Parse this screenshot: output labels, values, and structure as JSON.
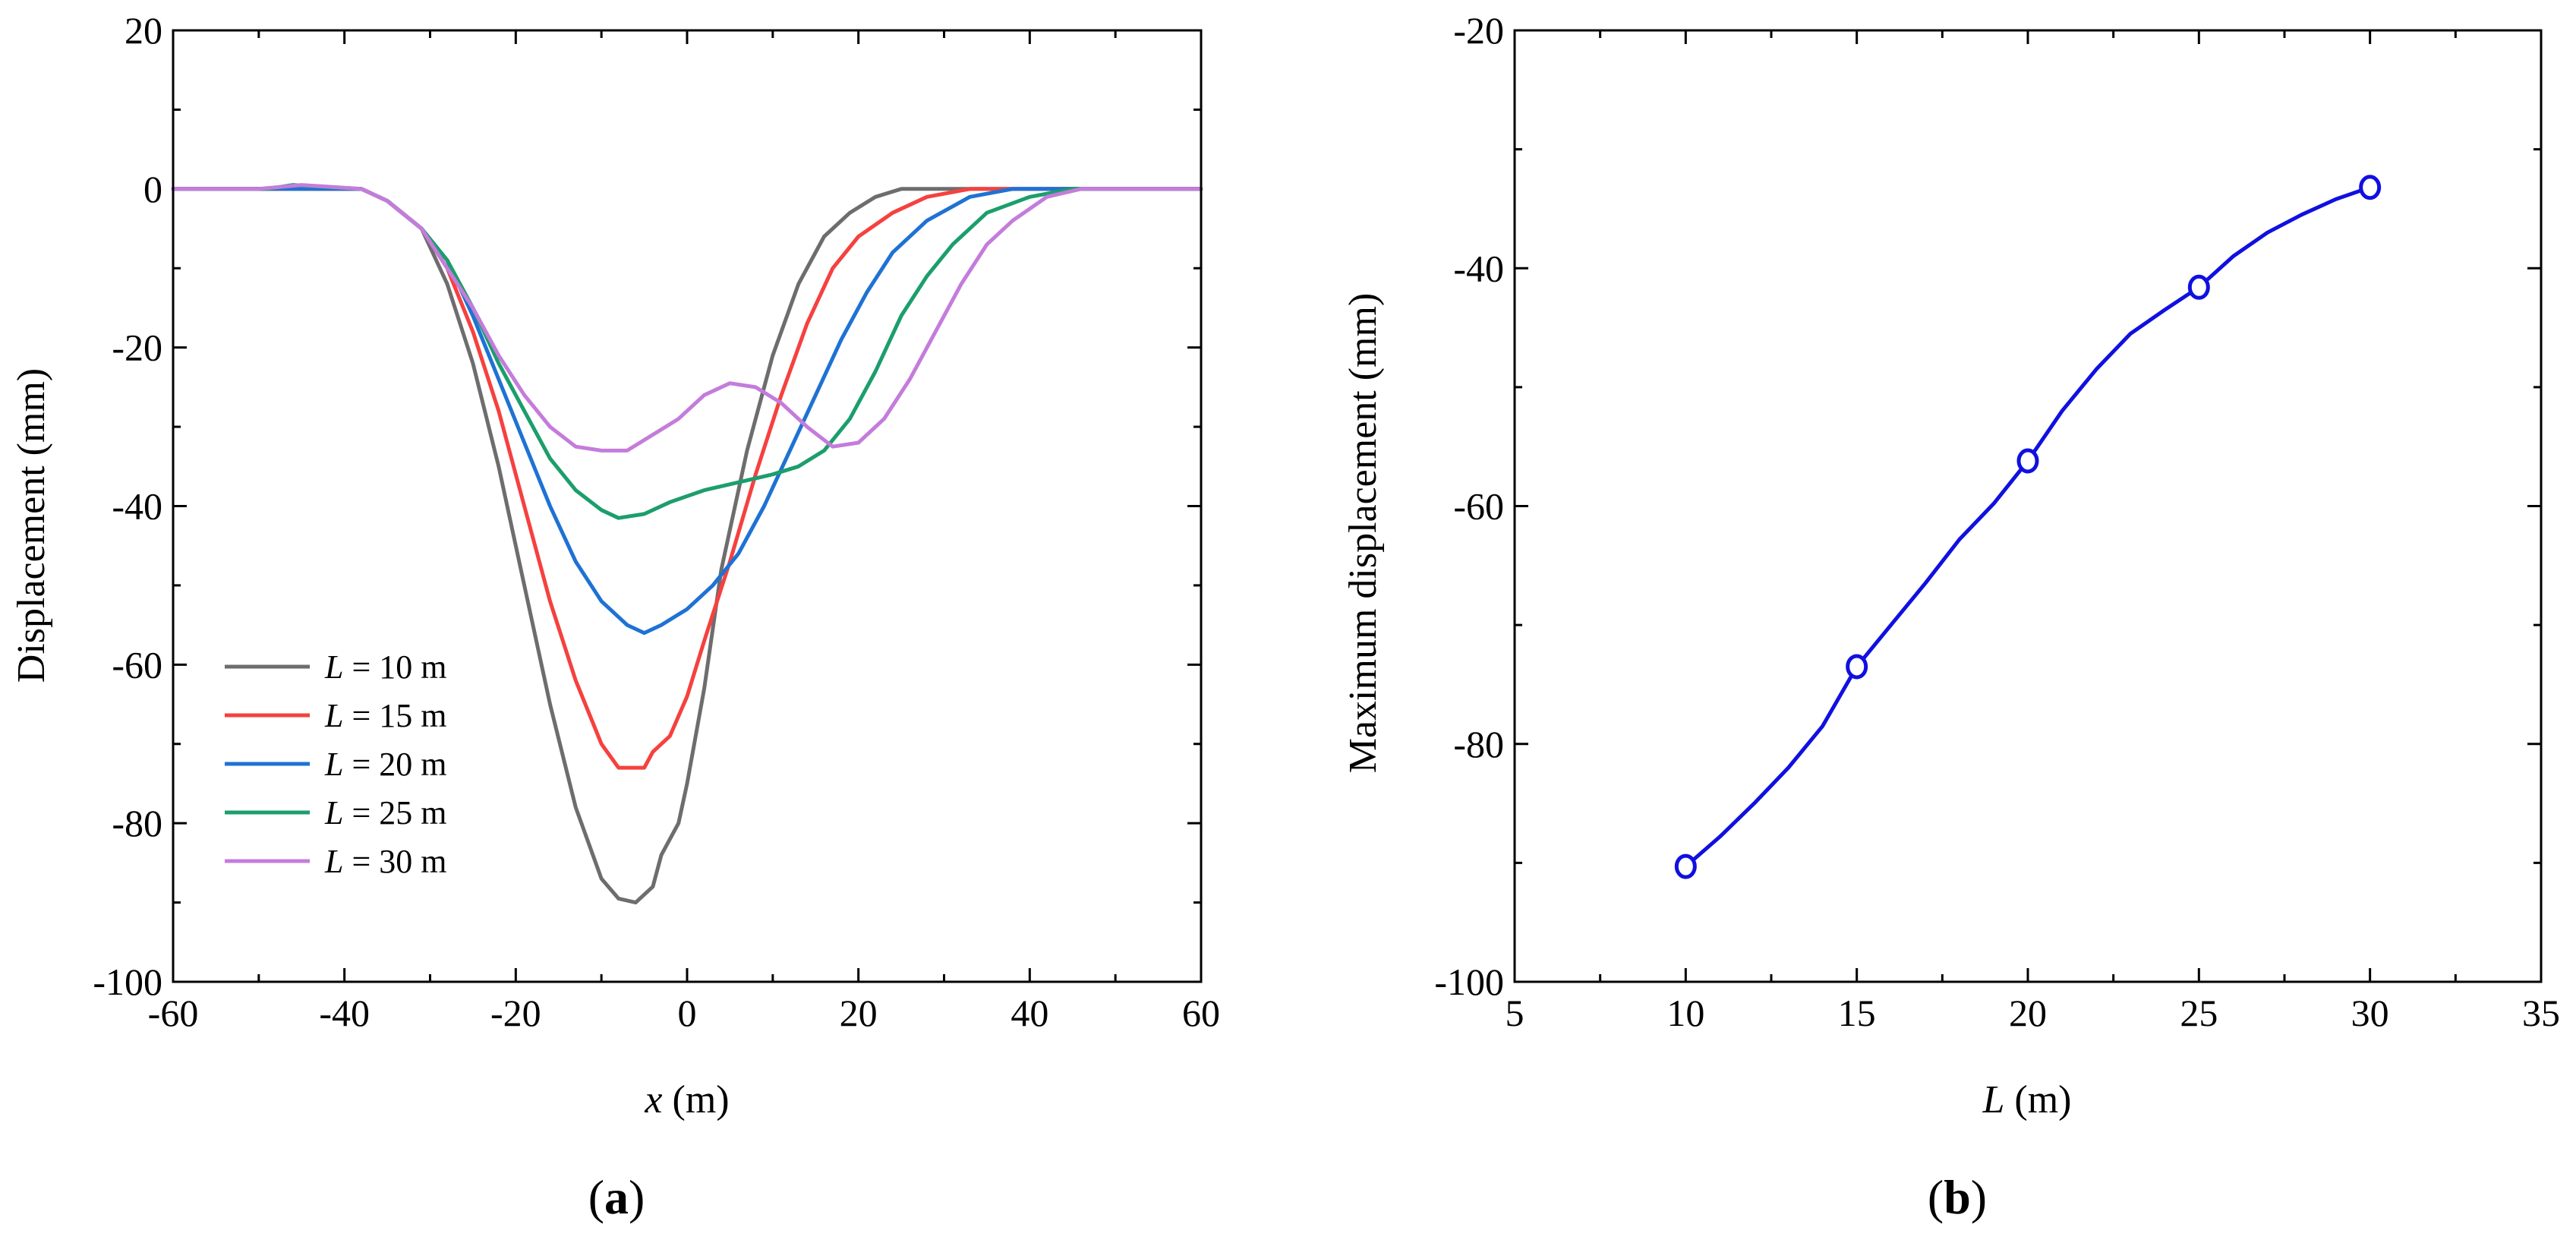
{
  "chart_data": [
    {
      "type": "line",
      "panel_label": "a",
      "xlabel_var": "x",
      "xlabel_unit": " (m)",
      "ylabel": "Displacement (mm)",
      "xlim": [
        -60,
        60
      ],
      "ylim": [
        -100,
        20
      ],
      "xticks": [
        -60,
        -40,
        -20,
        0,
        20,
        40,
        60
      ],
      "yticks": [
        20,
        0,
        -20,
        -40,
        -60,
        -80,
        -100
      ],
      "x_minor_step": 10,
      "y_minor_step": 10,
      "legend_position": "bottom-left",
      "series": [
        {
          "name": "L = 10 m",
          "legend_var": "L",
          "legend_rest": " = 10 m",
          "color": "#6d6d6d",
          "points": [
            [
              -60,
              0
            ],
            [
              -38,
              0
            ],
            [
              -35,
              -1.5
            ],
            [
              -31,
              -5
            ],
            [
              -28,
              -12
            ],
            [
              -25,
              -22
            ],
            [
              -22,
              -35
            ],
            [
              -19,
              -50
            ],
            [
              -16,
              -65
            ],
            [
              -13,
              -78
            ],
            [
              -10,
              -87
            ],
            [
              -8,
              -89.5
            ],
            [
              -6,
              -90
            ],
            [
              -4,
              -88
            ],
            [
              -3,
              -84
            ],
            [
              -1,
              -80
            ],
            [
              0,
              -75
            ],
            [
              2,
              -63
            ],
            [
              4,
              -48
            ],
            [
              7,
              -33
            ],
            [
              10,
              -21
            ],
            [
              13,
              -12
            ],
            [
              16,
              -6
            ],
            [
              19,
              -3
            ],
            [
              22,
              -1
            ],
            [
              25,
              0
            ],
            [
              60,
              0
            ]
          ]
        },
        {
          "name": "L = 15 m",
          "legend_var": "L",
          "legend_rest": " = 15 m",
          "color": "#f5413f",
          "points": [
            [
              -60,
              0
            ],
            [
              -38,
              0
            ],
            [
              -35,
              -1.5
            ],
            [
              -31,
              -5
            ],
            [
              -28,
              -10
            ],
            [
              -25,
              -18
            ],
            [
              -22,
              -28
            ],
            [
              -19,
              -40
            ],
            [
              -16,
              -52
            ],
            [
              -13,
              -62
            ],
            [
              -10,
              -70
            ],
            [
              -8,
              -73
            ],
            [
              -5,
              -73
            ],
            [
              -4,
              -71
            ],
            [
              -2,
              -69
            ],
            [
              0,
              -64
            ],
            [
              2,
              -57
            ],
            [
              5,
              -47
            ],
            [
              8,
              -36
            ],
            [
              11,
              -26
            ],
            [
              14,
              -17
            ],
            [
              17,
              -10
            ],
            [
              20,
              -6
            ],
            [
              24,
              -3
            ],
            [
              28,
              -1
            ],
            [
              33,
              0
            ],
            [
              60,
              0
            ]
          ]
        },
        {
          "name": "L = 20 m",
          "legend_var": "L",
          "legend_rest": " = 20 m",
          "color": "#1e72d4",
          "points": [
            [
              -60,
              0
            ],
            [
              -38,
              0
            ],
            [
              -35,
              -1.5
            ],
            [
              -31,
              -5
            ],
            [
              -28,
              -9
            ],
            [
              -25,
              -16
            ],
            [
              -22,
              -24
            ],
            [
              -19,
              -32
            ],
            [
              -16,
              -40
            ],
            [
              -13,
              -47
            ],
            [
              -10,
              -52
            ],
            [
              -7,
              -55
            ],
            [
              -5,
              -56
            ],
            [
              -3,
              -55
            ],
            [
              0,
              -53
            ],
            [
              3,
              -50
            ],
            [
              6,
              -46
            ],
            [
              9,
              -40
            ],
            [
              12,
              -33
            ],
            [
              15,
              -26
            ],
            [
              18,
              -19
            ],
            [
              21,
              -13
            ],
            [
              24,
              -8
            ],
            [
              28,
              -4
            ],
            [
              33,
              -1
            ],
            [
              38,
              0
            ],
            [
              60,
              0
            ]
          ]
        },
        {
          "name": "L = 25 m",
          "legend_var": "L",
          "legend_rest": " = 25 m",
          "color": "#1c9e6c",
          "points": [
            [
              -60,
              0
            ],
            [
              -49,
              0
            ],
            [
              -46,
              0.5
            ],
            [
              -38,
              0
            ],
            [
              -35,
              -1.5
            ],
            [
              -31,
              -5
            ],
            [
              -28,
              -9
            ],
            [
              -25,
              -15
            ],
            [
              -22,
              -22
            ],
            [
              -19,
              -28
            ],
            [
              -16,
              -34
            ],
            [
              -13,
              -38
            ],
            [
              -10,
              -40.5
            ],
            [
              -8,
              -41.5
            ],
            [
              -5,
              -41
            ],
            [
              -2,
              -39.5
            ],
            [
              2,
              -38
            ],
            [
              6,
              -37
            ],
            [
              10,
              -36
            ],
            [
              13,
              -35
            ],
            [
              16,
              -33
            ],
            [
              19,
              -29
            ],
            [
              22,
              -23
            ],
            [
              25,
              -16
            ],
            [
              28,
              -11
            ],
            [
              31,
              -7
            ],
            [
              35,
              -3
            ],
            [
              40,
              -1
            ],
            [
              45,
              0
            ],
            [
              60,
              0
            ]
          ]
        },
        {
          "name": "L = 30 m",
          "legend_var": "L",
          "legend_rest": " = 30 m",
          "color": "#c47cdb",
          "points": [
            [
              -60,
              0
            ],
            [
              -50,
              0
            ],
            [
              -45,
              0.5
            ],
            [
              -38,
              0
            ],
            [
              -35,
              -1.5
            ],
            [
              -31,
              -5
            ],
            [
              -28,
              -10
            ],
            [
              -25,
              -15
            ],
            [
              -22,
              -21
            ],
            [
              -19,
              -26
            ],
            [
              -16,
              -30
            ],
            [
              -13,
              -32.5
            ],
            [
              -10,
              -33
            ],
            [
              -7,
              -33
            ],
            [
              -4,
              -31
            ],
            [
              -1,
              -29
            ],
            [
              2,
              -26
            ],
            [
              5,
              -24.5
            ],
            [
              8,
              -25
            ],
            [
              11,
              -27
            ],
            [
              14,
              -30
            ],
            [
              17,
              -32.5
            ],
            [
              20,
              -32
            ],
            [
              23,
              -29
            ],
            [
              26,
              -24
            ],
            [
              29,
              -18
            ],
            [
              32,
              -12
            ],
            [
              35,
              -7
            ],
            [
              38,
              -4
            ],
            [
              42,
              -1
            ],
            [
              46,
              0
            ],
            [
              60,
              0
            ]
          ]
        }
      ]
    },
    {
      "type": "line",
      "panel_label": "b",
      "xlabel_var": "L",
      "xlabel_unit": " (m)",
      "ylabel": "Maximum displacement (mm)",
      "xlim": [
        5,
        35
      ],
      "ylim": [
        -100,
        -20
      ],
      "xticks": [
        5,
        10,
        15,
        20,
        25,
        30,
        35
      ],
      "yticks": [
        -20,
        -40,
        -60,
        -80,
        -100
      ],
      "x_minor_step": 2.5,
      "y_minor_step": 10,
      "series": [
        {
          "name": "Maximum displacement",
          "color": "#1010e0",
          "markers_x": [
            10,
            15,
            20,
            25,
            30
          ],
          "markers_y": [
            -90.3,
            -73.5,
            -56.2,
            -41.6,
            -33.2
          ],
          "points": [
            [
              10,
              -90.3
            ],
            [
              11,
              -87.8
            ],
            [
              12,
              -85
            ],
            [
              13,
              -82
            ],
            [
              14,
              -78.5
            ],
            [
              15,
              -73.5
            ],
            [
              16,
              -70
            ],
            [
              17,
              -66.5
            ],
            [
              18,
              -62.8
            ],
            [
              19,
              -59.8
            ],
            [
              20,
              -56.2
            ],
            [
              21,
              -52
            ],
            [
              22,
              -48.5
            ],
            [
              23,
              -45.5
            ],
            [
              24,
              -43.5
            ],
            [
              25,
              -41.6
            ],
            [
              26,
              -39
            ],
            [
              27,
              -37
            ],
            [
              28,
              -35.5
            ],
            [
              29,
              -34.2
            ],
            [
              30,
              -33.2
            ]
          ]
        }
      ]
    }
  ]
}
